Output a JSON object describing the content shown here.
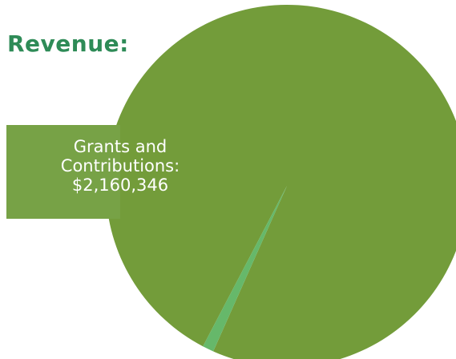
{
  "title": "Revenue:",
  "colors": {
    "title": "#2e8b57",
    "callout_box": "#77a246"
  },
  "callout": {
    "line1": "Grants and",
    "line2": "Contributions:",
    "line3": "$2,160,346"
  },
  "chart_data": {
    "type": "pie",
    "title": "Revenue:",
    "labels": [
      "Grants and Contributions",
      ""
    ],
    "values": [
      2160346,
      22000
    ],
    "percent": [
      99.0,
      1.0
    ],
    "colors": [
      "#739c3a",
      "#66b86a"
    ],
    "data_labels": [
      "Grants and Contributions: $2,160,346",
      ""
    ]
  }
}
